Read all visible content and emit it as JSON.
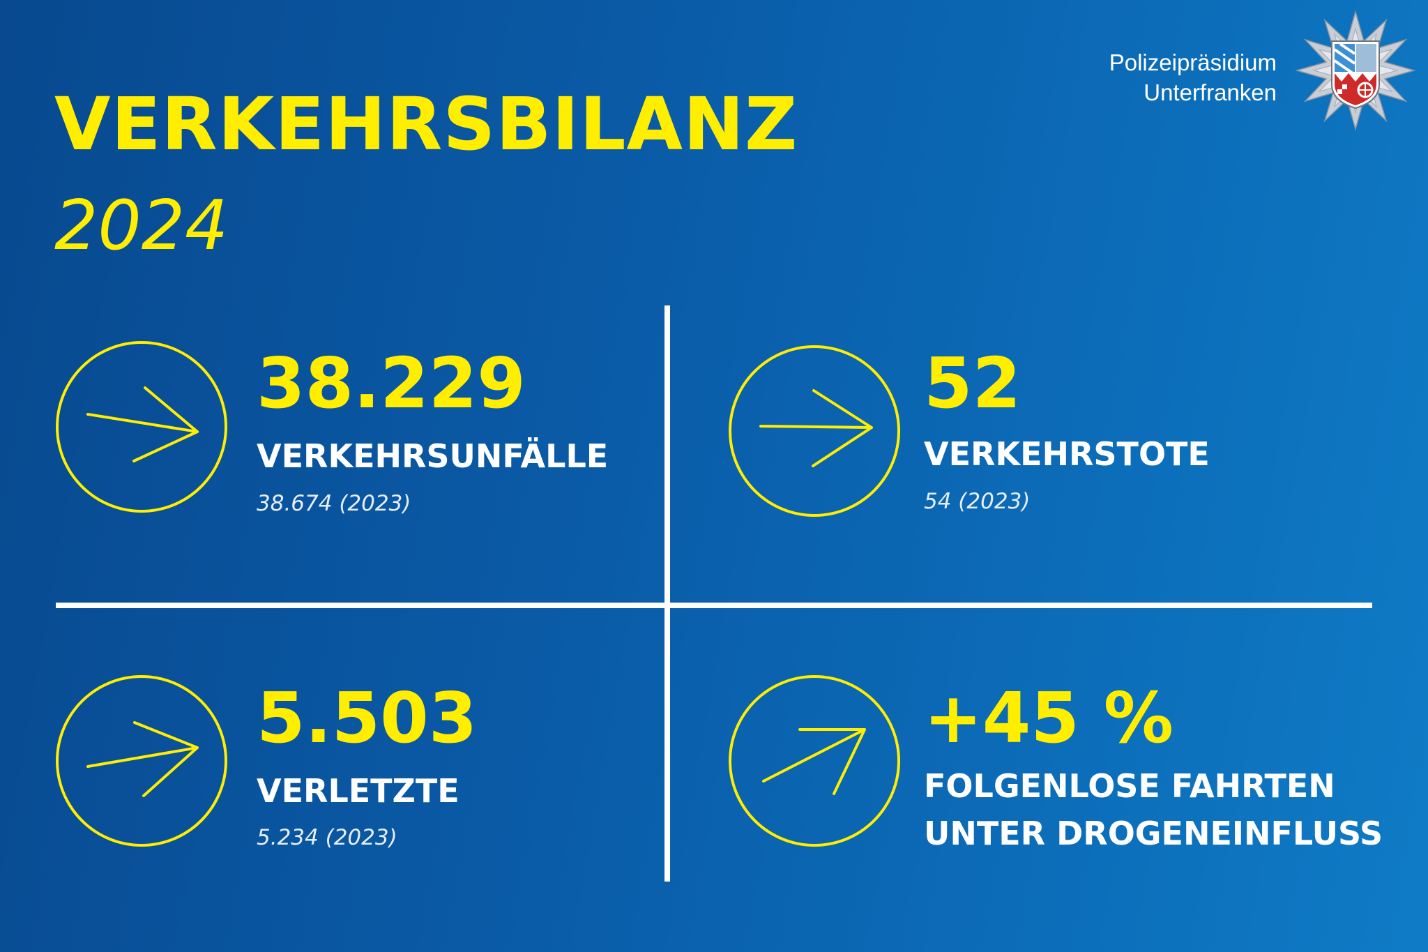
{
  "header": {
    "title": "VERKEHRSBILANZ",
    "year": "2024",
    "org_line1": "Polizeipräsidium",
    "org_line2": "Unterfranken"
  },
  "colors": {
    "accent": "#ffee00",
    "text": "#ffffff",
    "background_start": "#08498f",
    "background_end": "#0f7bc6"
  },
  "stats": [
    {
      "value": "38.229",
      "label": "VERKEHRSUNFÄLLE",
      "previous": "38.674 (2023)",
      "icon": "arrow-right-icon"
    },
    {
      "value": "52",
      "label": "VERKEHRSTOTE",
      "previous": "54 (2023)",
      "icon": "arrow-right-icon"
    },
    {
      "value": "5.503",
      "label": "VERLETZTE",
      "previous": "5.234 (2023)",
      "icon": "arrow-right-icon"
    },
    {
      "value": "+45 %",
      "label_line1": "FOLGENLOSE FAHRTEN",
      "label_line2": "UNTER DROGENEINFLUSS",
      "icon": "arrow-up-right-icon"
    }
  ]
}
